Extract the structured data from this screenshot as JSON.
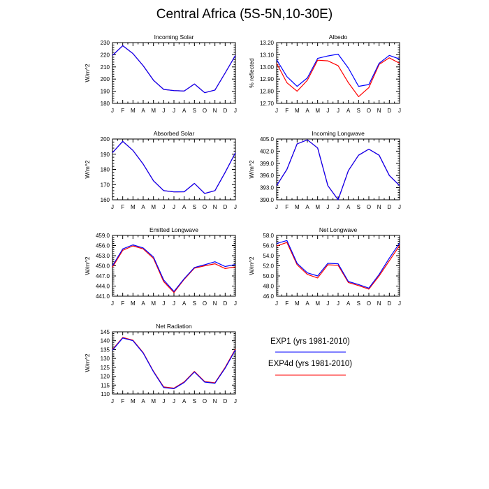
{
  "title": "Central Africa (5S-5N,10-30E)",
  "colors": {
    "exp1": "#0000ff",
    "exp4d": "#ff0000",
    "axis": "#000000"
  },
  "legend": [
    {
      "label": "EXP1 (yrs 1981-2010)",
      "color": "#0000ff"
    },
    {
      "label": "EXP4d (yrs 1981-2010)",
      "color": "#ff0000"
    }
  ],
  "chart_data": [
    {
      "type": "line",
      "title": "Incoming Solar",
      "xlabel": "",
      "ylabel": "W/m^2",
      "categories": [
        "J",
        "F",
        "M",
        "A",
        "M",
        "J",
        "J",
        "A",
        "S",
        "O",
        "N",
        "D",
        "J"
      ],
      "ylim": [
        180,
        230
      ],
      "yticks": [
        180,
        190,
        200,
        210,
        220,
        230
      ],
      "ytick_labels": [
        "180",
        "190",
        "200",
        "210",
        "220",
        "230"
      ],
      "series": [
        {
          "name": "EXP1 (yrs 1981-2010)",
          "color": "#0000ff",
          "values": [
            219.5,
            227.5,
            221,
            211,
            199,
            191.5,
            190.5,
            190.2,
            196,
            188.8,
            191,
            205,
            219.5
          ]
        },
        {
          "name": "EXP4d (yrs 1981-2010)",
          "color": "#ff0000",
          "values": [
            219.5,
            227.5,
            221,
            211,
            199,
            191.5,
            190.5,
            190.2,
            196,
            188.8,
            191,
            205,
            219.5
          ]
        }
      ]
    },
    {
      "type": "line",
      "title": "Albedo",
      "xlabel": "",
      "ylabel": "% reflected",
      "categories": [
        "J",
        "F",
        "M",
        "A",
        "M",
        "J",
        "J",
        "A",
        "S",
        "O",
        "N",
        "D",
        "J"
      ],
      "ylim": [
        12.7,
        13.2
      ],
      "yticks": [
        12.7,
        12.8,
        12.9,
        13.0,
        13.1,
        13.2
      ],
      "ytick_labels": [
        "12.70",
        "12.80",
        "12.90",
        "13.00",
        "13.10",
        "13.20"
      ],
      "series": [
        {
          "name": "EXP1 (yrs 1981-2010)",
          "color": "#0000ff",
          "values": [
            13.06,
            12.92,
            12.84,
            12.91,
            13.07,
            13.09,
            13.105,
            12.99,
            12.84,
            12.855,
            13.03,
            13.095,
            13.065
          ]
        },
        {
          "name": "EXP4d (yrs 1981-2010)",
          "color": "#ff0000",
          "values": [
            13.03,
            12.87,
            12.8,
            12.89,
            13.055,
            13.05,
            13.01,
            12.87,
            12.755,
            12.83,
            13.02,
            13.075,
            13.03
          ]
        }
      ]
    },
    {
      "type": "line",
      "title": "Absorbed Solar",
      "xlabel": "",
      "ylabel": "W/m^2",
      "categories": [
        "J",
        "F",
        "M",
        "A",
        "M",
        "J",
        "J",
        "A",
        "S",
        "O",
        "N",
        "D",
        "J"
      ],
      "ylim": [
        160,
        200
      ],
      "yticks": [
        160,
        170,
        180,
        190,
        200
      ],
      "ytick_labels": [
        "160",
        "170",
        "180",
        "190",
        "200"
      ],
      "series": [
        {
          "name": "EXP1 (yrs 1981-2010)",
          "color": "#0000ff",
          "values": [
            191,
            198.5,
            192.5,
            183.5,
            172.5,
            166,
            165.2,
            165.3,
            170.8,
            164.2,
            166,
            178,
            191
          ]
        },
        {
          "name": "EXP4d (yrs 1981-2010)",
          "color": "#ff0000",
          "values": [
            191,
            198.5,
            192.5,
            183.5,
            172.5,
            166,
            165.2,
            165.3,
            170.8,
            164.2,
            166,
            178,
            191
          ]
        }
      ]
    },
    {
      "type": "line",
      "title": "Incoming Longwave",
      "xlabel": "",
      "ylabel": "W/m^2",
      "categories": [
        "J",
        "F",
        "M",
        "A",
        "M",
        "J",
        "J",
        "A",
        "S",
        "O",
        "N",
        "D",
        "J"
      ],
      "ylim": [
        390,
        405
      ],
      "yticks": [
        390,
        393,
        396,
        399,
        402,
        405
      ],
      "ytick_labels": [
        "390.0",
        "393.0",
        "396.0",
        "399.0",
        "402.0",
        "405.0"
      ],
      "series": [
        {
          "name": "EXP1 (yrs 1981-2010)",
          "color": "#0000ff",
          "values": [
            393.5,
            397.5,
            403.8,
            404.8,
            402.8,
            393.5,
            390,
            397.2,
            401,
            402.5,
            401,
            396,
            393.5
          ]
        },
        {
          "name": "EXP4d (yrs 1981-2010)",
          "color": "#ff0000",
          "values": [
            393.5,
            397.5,
            403.8,
            404.8,
            402.8,
            393.5,
            390,
            397.2,
            401,
            402.5,
            401,
            396,
            393.5
          ]
        }
      ]
    },
    {
      "type": "line",
      "title": "Emitted Longwave",
      "xlabel": "",
      "ylabel": "W/m^2",
      "categories": [
        "J",
        "F",
        "M",
        "A",
        "M",
        "J",
        "J",
        "A",
        "S",
        "O",
        "N",
        "D",
        "J"
      ],
      "ylim": [
        441,
        459
      ],
      "yticks": [
        441,
        444,
        447,
        450,
        453,
        456,
        459
      ],
      "ytick_labels": [
        "441.0",
        "444.0",
        "447.0",
        "450.0",
        "453.0",
        "456.0",
        "459.0"
      ],
      "series": [
        {
          "name": "EXP1 (yrs 1981-2010)",
          "color": "#0000ff",
          "values": [
            450,
            455,
            456.2,
            455.3,
            452.6,
            445.8,
            442.4,
            446.2,
            449.5,
            450.3,
            451.2,
            449.8,
            450.4
          ]
        },
        {
          "name": "EXP4d (yrs 1981-2010)",
          "color": "#ff0000",
          "values": [
            449.6,
            454.6,
            455.9,
            455,
            452.2,
            445.3,
            442.1,
            446,
            449.3,
            450,
            450.6,
            449.2,
            449.7
          ]
        }
      ]
    },
    {
      "type": "line",
      "title": "Net Longwave",
      "xlabel": "",
      "ylabel": "W/m^2",
      "categories": [
        "J",
        "F",
        "M",
        "A",
        "M",
        "J",
        "J",
        "A",
        "S",
        "O",
        "N",
        "D",
        "J"
      ],
      "ylim": [
        46,
        58
      ],
      "yticks": [
        46,
        48,
        50,
        52,
        54,
        56,
        58
      ],
      "ytick_labels": [
        "46.0",
        "48.0",
        "50.0",
        "52.0",
        "54.0",
        "56.0",
        "58.0"
      ],
      "series": [
        {
          "name": "EXP1 (yrs 1981-2010)",
          "color": "#0000ff",
          "values": [
            56.4,
            57.0,
            52.5,
            50.6,
            50.0,
            52.5,
            52.4,
            48.9,
            48.3,
            47.6,
            50.3,
            53.5,
            56.5
          ]
        },
        {
          "name": "EXP4d (yrs 1981-2010)",
          "color": "#ff0000",
          "values": [
            55.9,
            56.6,
            52.2,
            50.3,
            49.6,
            52.2,
            52.1,
            48.7,
            48.1,
            47.4,
            50.0,
            53.0,
            56.0
          ]
        }
      ]
    },
    {
      "type": "line",
      "title": "Net Radiation",
      "xlabel": "",
      "ylabel": "W/m^2",
      "categories": [
        "J",
        "F",
        "M",
        "A",
        "M",
        "J",
        "J",
        "A",
        "S",
        "O",
        "N",
        "D",
        "J"
      ],
      "ylim": [
        110,
        145
      ],
      "yticks": [
        110,
        115,
        120,
        125,
        130,
        135,
        140,
        145
      ],
      "ytick_labels": [
        "110",
        "115",
        "120",
        "125",
        "130",
        "135",
        "140",
        "145"
      ],
      "series": [
        {
          "name": "EXP1 (yrs 1981-2010)",
          "color": "#0000ff",
          "values": [
            134.6,
            141.5,
            140,
            133,
            122.5,
            113.6,
            113,
            116.5,
            122.4,
            116.7,
            116,
            124.5,
            134.8
          ]
        },
        {
          "name": "EXP4d (yrs 1981-2010)",
          "color": "#ff0000",
          "values": [
            135,
            141.8,
            140.3,
            133.3,
            122.8,
            114,
            113.3,
            116.8,
            122.7,
            117,
            116.3,
            125,
            135.3
          ]
        }
      ]
    }
  ]
}
